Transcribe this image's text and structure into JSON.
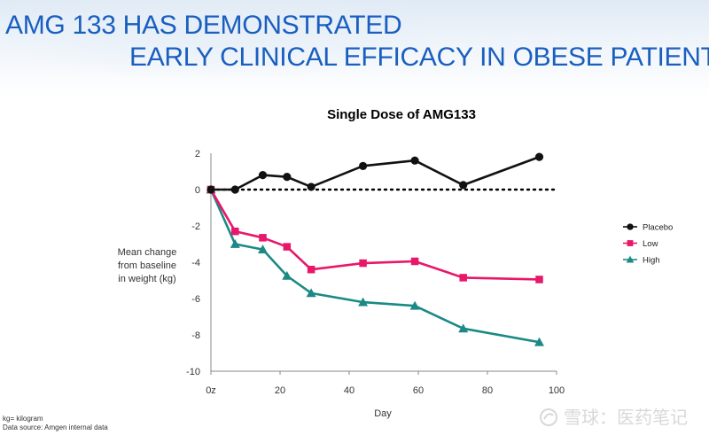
{
  "slide": {
    "title_line1": "AMG 133 HAS DEMONSTRATED",
    "title_line2": "EARLY CLINICAL EFFICACY IN OBESE PATIENTS",
    "footnote1": "kg= kilogram",
    "footnote2": "Data source: Amgen internal data",
    "watermark": "雪球：医药笔记",
    "watermark_icon": "snowball-logo-icon"
  },
  "chart_data": {
    "type": "line",
    "title": "Single Dose of AMG133",
    "xlabel": "Day",
    "ylabel": [
      "Mean change",
      "from baseline",
      "in weight (kg)"
    ],
    "xlim": [
      0,
      100
    ],
    "ylim": [
      -10,
      2
    ],
    "xticks": [
      0,
      20,
      40,
      60,
      80,
      100
    ],
    "xtick_labels": [
      "0z",
      "20",
      "40",
      "60",
      "80",
      "100"
    ],
    "yticks": [
      2,
      0,
      -2,
      -4,
      -6,
      -8,
      -10
    ],
    "ytick_labels": [
      "2",
      "0",
      "-2",
      "-4",
      "-6",
      "-8",
      "-10"
    ],
    "baseline": 0,
    "legend_position": "right",
    "series": [
      {
        "name": "Placebo",
        "color": "#111111",
        "marker": "circle",
        "x": [
          0,
          7,
          15,
          22,
          29,
          44,
          59,
          73,
          95
        ],
        "y": [
          0,
          0,
          0.8,
          0.7,
          0.15,
          1.3,
          1.6,
          0.25,
          1.8
        ]
      },
      {
        "name": "Low",
        "color": "#e8176a",
        "marker": "square",
        "x": [
          0,
          7,
          15,
          22,
          29,
          44,
          59,
          73,
          95
        ],
        "y": [
          0,
          -2.3,
          -2.65,
          -3.15,
          -4.4,
          -4.05,
          -3.95,
          -4.85,
          -4.95
        ]
      },
      {
        "name": "High",
        "color": "#1b8a86",
        "marker": "triangle",
        "x": [
          0,
          7,
          15,
          22,
          29,
          44,
          59,
          73,
          95
        ],
        "y": [
          0,
          -3.0,
          -3.3,
          -4.75,
          -5.7,
          -6.2,
          -6.4,
          -7.65,
          -8.4
        ]
      }
    ]
  }
}
